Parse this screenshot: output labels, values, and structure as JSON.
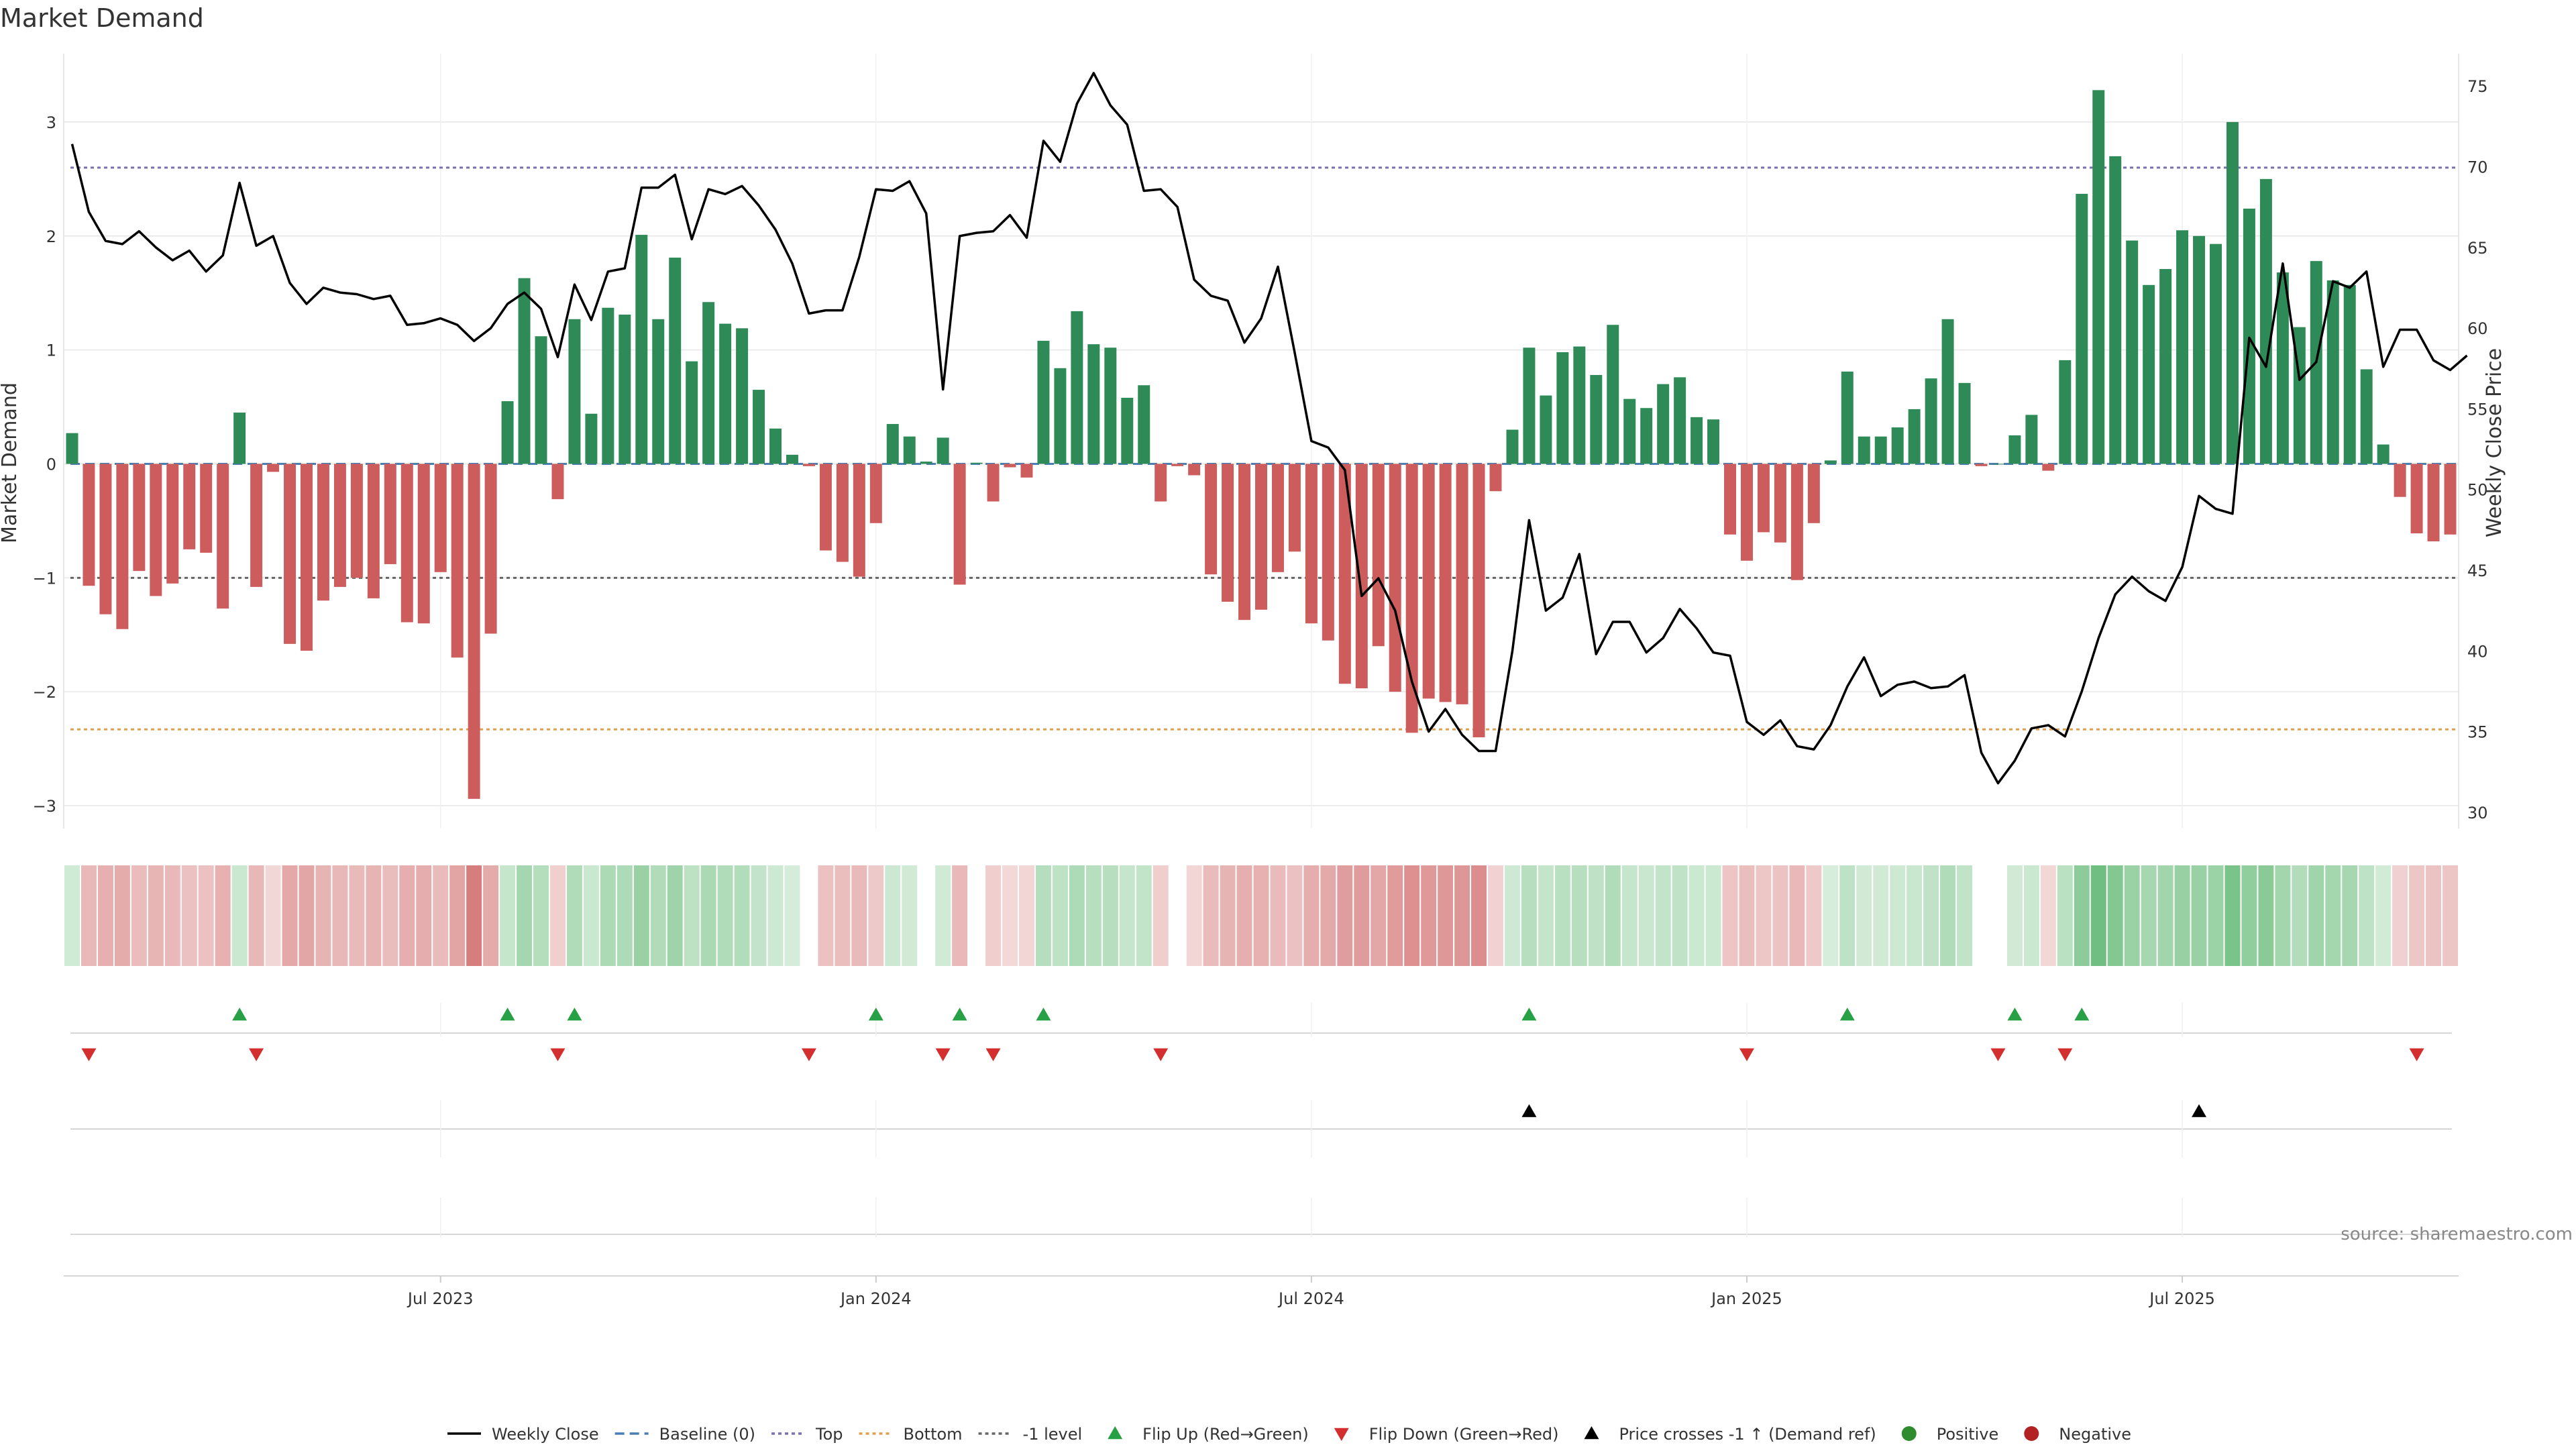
{
  "chart_data": {
    "type": "bar",
    "title": "Market Demand",
    "ylabel_left": "Market Demand",
    "ylabel_right": "Weekly Close Price",
    "ylim_left": [
      -3.2,
      3.6
    ],
    "ylim_right": [
      29,
      77
    ],
    "yticks_left": [
      3,
      2,
      1,
      0,
      -1,
      -2,
      -3
    ],
    "yticks_left_labels": [
      "3",
      "2",
      "1",
      "0",
      "−1",
      "−2",
      "−3"
    ],
    "yticks_right": [
      75,
      70,
      65,
      60,
      55,
      50,
      45,
      40,
      35,
      30
    ],
    "xticks": [
      "Jul 2023",
      "Jan 2024",
      "Jul 2024",
      "Jan 2025",
      "Jul 2025"
    ],
    "xtick_weeks": [
      22,
      48,
      74,
      100,
      126
    ],
    "reference_lines": [
      {
        "name": "Top",
        "value": 2.6,
        "color": "#7b6fb0"
      },
      {
        "name": "Bottom",
        "value": -2.33,
        "color": "#e0a050"
      },
      {
        "name": "-1 level",
        "value": -1,
        "color": "#666666"
      },
      {
        "name": "Baseline (0)",
        "value": 0,
        "color": "#4a7fb5"
      }
    ],
    "series": [
      {
        "name": "Market Demand",
        "values": [
          0.27,
          -1.07,
          -1.32,
          -1.45,
          -0.94,
          -1.16,
          -1.05,
          -0.75,
          -0.78,
          -1.27,
          0.45,
          -1.08,
          -0.07,
          -1.58,
          -1.64,
          -1.2,
          -1.08,
          -1.0,
          -1.18,
          -0.88,
          -1.39,
          -1.4,
          -0.95,
          -1.7,
          -2.94,
          -1.49,
          0.55,
          1.63,
          1.12,
          -0.31,
          1.27,
          0.44,
          1.37,
          1.31,
          2.01,
          1.27,
          1.81,
          0.9,
          1.42,
          1.23,
          1.19,
          0.65,
          0.31,
          0.08,
          -0.02,
          -0.76,
          -0.86,
          -0.99,
          -0.52,
          0.35,
          0.24,
          0.02,
          0.23,
          -1.06,
          0.01,
          -0.33,
          -0.03,
          -0.12,
          1.08,
          0.84,
          1.34,
          1.05,
          1.02,
          0.58,
          0.69,
          -0.33,
          -0.02,
          -0.1,
          -0.97,
          -1.21,
          -1.37,
          -1.28,
          -0.95,
          -0.77,
          -1.4,
          -1.55,
          -1.93,
          -1.97,
          -1.6,
          -2.0,
          -2.36,
          -2.06,
          -2.09,
          -2.11,
          -2.4,
          -0.24,
          0.3,
          1.02,
          0.6,
          0.98,
          1.03,
          0.78,
          1.22,
          0.57,
          0.49,
          0.7,
          0.76,
          0.41,
          0.39,
          -0.62,
          -0.85,
          -0.6,
          -0.69,
          -1.02,
          -0.52,
          0.03,
          0.81,
          0.24,
          0.24,
          0.32,
          0.48,
          0.75,
          1.27,
          0.71,
          -0.02,
          0.0,
          0.25,
          0.43,
          -0.06,
          0.91,
          2.37,
          3.28,
          2.7,
          1.96,
          1.57,
          1.71,
          2.05,
          2.0,
          1.93,
          3.0,
          2.24,
          2.5,
          1.68,
          1.2,
          1.78,
          1.61,
          1.57,
          0.83,
          0.17,
          -0.29,
          -0.61,
          -0.68,
          -0.62
        ]
      },
      {
        "name": "Weekly Close",
        "values": [
          71.4,
          67.2,
          65.4,
          65.2,
          66.0,
          65.0,
          64.2,
          64.8,
          63.5,
          64.5,
          69.0,
          65.1,
          65.7,
          62.8,
          61.5,
          62.5,
          62.2,
          62.1,
          61.8,
          62.0,
          60.2,
          60.3,
          60.6,
          60.2,
          59.2,
          60.0,
          61.5,
          62.2,
          61.2,
          58.2,
          62.7,
          60.5,
          63.5,
          63.7,
          68.7,
          68.7,
          69.5,
          65.5,
          68.6,
          68.3,
          68.8,
          67.6,
          66.1,
          64.0,
          60.9,
          61.1,
          61.1,
          64.4,
          68.6,
          68.5,
          69.1,
          67.1,
          56.2,
          65.7,
          65.9,
          66.0,
          67.0,
          65.6,
          71.6,
          70.3,
          73.9,
          75.8,
          73.8,
          72.6,
          68.5,
          68.6,
          67.5,
          63.0,
          62.0,
          61.7,
          59.1,
          60.6,
          63.8,
          58.5,
          53.0,
          52.6,
          51.2,
          43.4,
          44.5,
          42.5,
          38.1,
          35.0,
          36.4,
          34.8,
          33.8,
          33.8,
          40.0,
          48.1,
          42.5,
          43.3,
          46.0,
          39.8,
          41.8,
          41.8,
          39.9,
          40.8,
          42.6,
          41.4,
          39.9,
          39.7,
          35.6,
          34.8,
          35.7,
          34.1,
          33.9,
          35.4,
          37.8,
          39.6,
          37.2,
          37.9,
          38.1,
          37.7,
          37.8,
          38.5,
          33.7,
          31.8,
          33.2,
          35.2,
          35.4,
          34.7,
          37.5,
          40.8,
          43.5,
          44.6,
          43.7,
          43.1,
          45.2,
          49.6,
          48.8,
          48.5,
          59.4,
          57.6,
          64.0,
          56.8,
          57.9,
          62.9,
          62.5,
          63.5,
          57.6,
          59.9,
          59.9,
          58.0,
          57.4,
          58.3
        ]
      }
    ],
    "flip_up_weeks": [
      10,
      26,
      30,
      48,
      53,
      58,
      87,
      106,
      116,
      120
    ],
    "flip_down_weeks": [
      1,
      11,
      29,
      44,
      52,
      55,
      65,
      100,
      115,
      119,
      140
    ],
    "price_cross_weeks": [
      87,
      127
    ],
    "colors": {
      "positive_bar": "#2e8b57",
      "negative_bar": "#cd5c5c",
      "heat_positive": "#4caf60",
      "heat_negative": "#c85050",
      "flip_up": "#27a046",
      "flip_down": "#d32f2f",
      "price_cross": "#000000",
      "line": "#000000",
      "grid": "#e6e6e6"
    },
    "legend": {
      "position": "bottom-center",
      "entries": [
        {
          "label": "Weekly Close",
          "marker": "line-solid",
          "color": "#000000"
        },
        {
          "label": "Baseline (0)",
          "marker": "line-dashed",
          "color": "#4a7fb5"
        },
        {
          "label": "Top",
          "marker": "line-dotted",
          "color": "#7b6fb0"
        },
        {
          "label": "Bottom",
          "marker": "line-dotted",
          "color": "#e0a050"
        },
        {
          "label": "-1 level",
          "marker": "line-dotted",
          "color": "#666666"
        },
        {
          "label": "Flip Up (Red→Green)",
          "marker": "triangle-up",
          "color": "#27a046"
        },
        {
          "label": "Flip Down (Green→Red)",
          "marker": "triangle-down",
          "color": "#d32f2f"
        },
        {
          "label": "Price crosses -1 ↑ (Demand ref)",
          "marker": "triangle-up",
          "color": "#000000"
        },
        {
          "label": "Positive",
          "marker": "circle",
          "color": "#2e8b2e"
        },
        {
          "label": "Negative",
          "marker": "circle",
          "color": "#b22222"
        }
      ]
    },
    "source": "source: sharemaestro.com"
  }
}
